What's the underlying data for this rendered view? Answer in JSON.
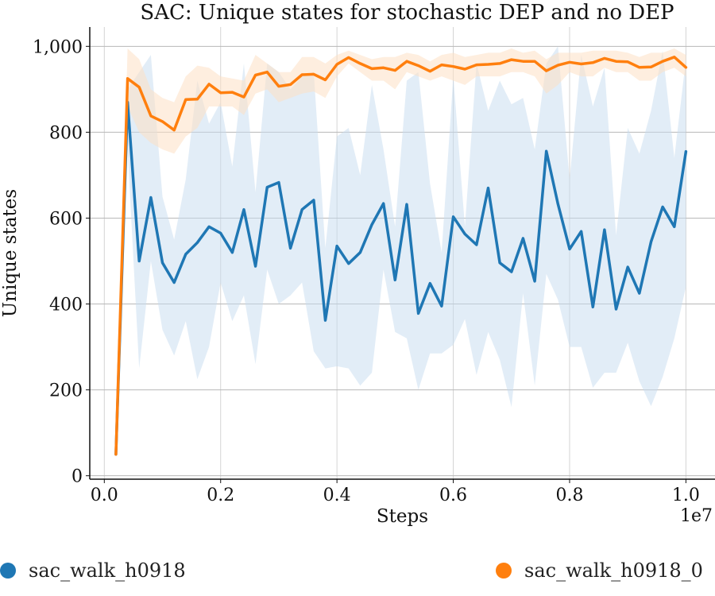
{
  "chart_data": {
    "type": "line",
    "title": "SAC: Unique states for stochastic DEP and no DEP",
    "xlabel": "Steps",
    "ylabel": "Unique states",
    "x_offset_label": "1e7",
    "xlim": [
      -0.025,
      1.05
    ],
    "ylim": [
      -8,
      1045
    ],
    "xticks": [
      0.0,
      0.2,
      0.4,
      0.6,
      0.8,
      1.0
    ],
    "xtick_labels": [
      "0.0",
      "0.2",
      "0.4",
      "0.6",
      "0.8",
      "1.0"
    ],
    "yticks": [
      0,
      200,
      400,
      600,
      800,
      1000
    ],
    "ytick_labels": [
      "0",
      "200",
      "400",
      "600",
      "800",
      "1,000"
    ],
    "grid": true,
    "legend_position": "bottom",
    "x": [
      0.02,
      0.04,
      0.06,
      0.08,
      0.1,
      0.12,
      0.14,
      0.16,
      0.18,
      0.2,
      0.22,
      0.24,
      0.26,
      0.28,
      0.3,
      0.32,
      0.34,
      0.36,
      0.38,
      0.4,
      0.42,
      0.44,
      0.46,
      0.48,
      0.5,
      0.52,
      0.54,
      0.56,
      0.58,
      0.6,
      0.62,
      0.64,
      0.66,
      0.68,
      0.7,
      0.72,
      0.74,
      0.76,
      0.78,
      0.8,
      0.82,
      0.84,
      0.86,
      0.88,
      0.9,
      0.92,
      0.94,
      0.96,
      0.98,
      1.0
    ],
    "series": [
      {
        "name": "sac_walk_h0918",
        "color": "#1f77b4",
        "band_color": "#c6dbef",
        "values": [
          50,
          870,
          500,
          648,
          496,
          450,
          516,
          543,
          580,
          565,
          520,
          620,
          488,
          672,
          683,
          530,
          620,
          642,
          362,
          535,
          494,
          520,
          585,
          634,
          456,
          632,
          378,
          448,
          395,
          603,
          563,
          538,
          670,
          496,
          475,
          553,
          453,
          756,
          633,
          528,
          569,
          393,
          573,
          388,
          486,
          425,
          545,
          626,
          580,
          755
        ],
        "lower": [
          50,
          760,
          250,
          500,
          340,
          280,
          360,
          225,
          300,
          450,
          360,
          420,
          260,
          480,
          400,
          420,
          450,
          290,
          250,
          255,
          250,
          210,
          240,
          480,
          335,
          320,
          200,
          285,
          285,
          305,
          365,
          235,
          335,
          270,
          160,
          425,
          210,
          470,
          410,
          300,
          300,
          205,
          240,
          240,
          310,
          220,
          162,
          230,
          320,
          440
        ],
        "upper": [
          50,
          900,
          940,
          980,
          650,
          550,
          690,
          920,
          820,
          870,
          720,
          960,
          660,
          960,
          940,
          900,
          930,
          940,
          530,
          790,
          810,
          700,
          910,
          760,
          580,
          920,
          940,
          680,
          520,
          930,
          580,
          960,
          850,
          920,
          865,
          880,
          760,
          960,
          1000,
          690,
          980,
          860,
          950,
          560,
          810,
          750,
          850,
          990,
          740,
          970
        ]
      },
      {
        "name": "sac_walk_h0918_0",
        "color": "#ff7f0e",
        "band_color": "#fde0c5",
        "values": [
          50,
          925,
          905,
          838,
          825,
          805,
          876,
          877,
          912,
          892,
          893,
          882,
          933,
          940,
          907,
          911,
          934,
          935,
          922,
          958,
          974,
          960,
          948,
          950,
          944,
          965,
          955,
          942,
          957,
          953,
          947,
          957,
          958,
          960,
          969,
          965,
          965,
          943,
          956,
          963,
          959,
          962,
          972,
          965,
          964,
          951,
          952,
          965,
          975,
          951
        ],
        "lower": [
          50,
          860,
          800,
          775,
          760,
          750,
          790,
          810,
          860,
          860,
          860,
          840,
          890,
          900,
          870,
          880,
          890,
          895,
          880,
          930,
          960,
          940,
          920,
          920,
          900,
          940,
          930,
          920,
          930,
          920,
          910,
          930,
          930,
          930,
          940,
          940,
          930,
          890,
          910,
          940,
          930,
          930,
          950,
          940,
          940,
          920,
          920,
          940,
          950,
          930
        ],
        "upper": [
          50,
          995,
          970,
          900,
          880,
          870,
          930,
          955,
          950,
          930,
          925,
          920,
          980,
          960,
          940,
          940,
          975,
          975,
          960,
          980,
          990,
          980,
          970,
          975,
          975,
          985,
          980,
          965,
          980,
          985,
          975,
          980,
          985,
          985,
          995,
          985,
          990,
          970,
          985,
          985,
          985,
          990,
          990,
          990,
          985,
          975,
          985,
          985,
          995,
          980
        ]
      }
    ]
  }
}
